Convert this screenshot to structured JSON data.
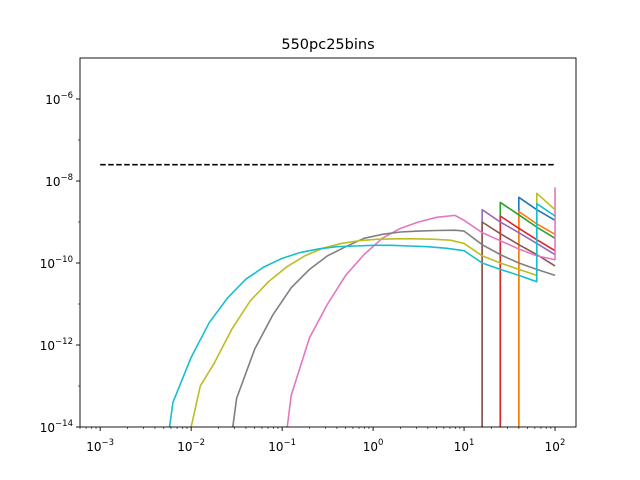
{
  "chart_data": {
    "type": "line",
    "title": "550pc25bins",
    "xlabel": "",
    "ylabel": "",
    "xscale": "log",
    "yscale": "log",
    "xlim": [
      0.0006,
      170
    ],
    "ylim": [
      1e-14,
      1e-05
    ],
    "x_ticks": [
      {
        "value": 0.001,
        "base": "10",
        "exp": "−3"
      },
      {
        "value": 0.01,
        "base": "10",
        "exp": "−2"
      },
      {
        "value": 0.1,
        "base": "10",
        "exp": "−1"
      },
      {
        "value": 1,
        "base": "10",
        "exp": "0"
      },
      {
        "value": 10,
        "base": "10",
        "exp": "1"
      },
      {
        "value": 100,
        "base": "10",
        "exp": "2"
      }
    ],
    "y_ticks": [
      {
        "value": 1e-14,
        "base": "10",
        "exp": "−14"
      },
      {
        "value": 1e-12,
        "base": "10",
        "exp": "−12"
      },
      {
        "value": 1e-10,
        "base": "10",
        "exp": "−10"
      },
      {
        "value": 1e-08,
        "base": "10",
        "exp": "−8"
      },
      {
        "value": 1e-06,
        "base": "10",
        "exp": "−6"
      }
    ],
    "grid": false,
    "legend": "none",
    "reference_line": {
      "x": [
        0.001,
        100
      ],
      "y": [
        2.5e-08,
        2.5e-08
      ],
      "color": "#000000",
      "style": "dashed"
    },
    "series": [
      {
        "color": "#1f77b4",
        "x": [
          40,
          40,
          63,
          100
        ],
        "y": [
          1e-15,
          4e-09,
          2e-09,
          1.1e-09
        ]
      },
      {
        "color": "#ff7f0e",
        "x": [
          40,
          40,
          63,
          100
        ],
        "y": [
          1e-15,
          1.8e-09,
          9e-10,
          5e-10
        ]
      },
      {
        "color": "#2ca02c",
        "x": [
          25,
          25,
          40,
          63,
          100
        ],
        "y": [
          1e-15,
          3e-09,
          1.5e-09,
          7.5e-10,
          4e-10
        ]
      },
      {
        "color": "#d62728",
        "x": [
          25,
          25,
          40,
          63,
          100
        ],
        "y": [
          1e-15,
          1.4e-09,
          7e-10,
          3.7e-10,
          2e-10
        ]
      },
      {
        "color": "#9467bd",
        "x": [
          15.8,
          15.8,
          25,
          40,
          63,
          100
        ],
        "y": [
          1e-15,
          2e-09,
          1e-09,
          5.5e-10,
          3e-10,
          1.6e-10
        ]
      },
      {
        "color": "#8c564b",
        "x": [
          15.8,
          15.8,
          25,
          40,
          63,
          100
        ],
        "y": [
          1e-15,
          1e-09,
          5.2e-10,
          2.8e-10,
          1.6e-10,
          8.5e-11
        ]
      },
      {
        "color": "#e377c2",
        "x": [
          0.1,
          0.126,
          0.2,
          0.316,
          0.5,
          0.794,
          1.26,
          2,
          3.16,
          5,
          7.94,
          10,
          15.8,
          25,
          40,
          63,
          100,
          100
        ],
        "y": [
          1e-15,
          6e-14,
          1.5e-12,
          1e-11,
          5e-11,
          1.6e-10,
          4e-10,
          7e-10,
          1e-09,
          1.3e-09,
          1.45e-09,
          1.1e-09,
          5.5e-10,
          3.5e-10,
          2.2e-10,
          1.5e-10,
          1.2e-10,
          7e-09
        ]
      },
      {
        "color": "#7f7f7f",
        "x": [
          0.025,
          0.0316,
          0.05,
          0.0794,
          0.126,
          0.2,
          0.316,
          0.5,
          0.794,
          1.26,
          2,
          3.16,
          5,
          7.94,
          10,
          15.8,
          25,
          40,
          63,
          100
        ],
        "y": [
          1e-15,
          5e-14,
          8e-13,
          5.5e-12,
          2.5e-11,
          7e-11,
          1.5e-10,
          2.5e-10,
          4e-10,
          5e-10,
          5.7e-10,
          6e-10,
          6.2e-10,
          6.3e-10,
          6e-10,
          2.8e-10,
          1.6e-10,
          1e-10,
          7e-11,
          5e-11
        ]
      },
      {
        "color": "#bcbd22",
        "x": [
          0.01,
          0.0126,
          0.0178,
          0.0282,
          0.0447,
          0.0708,
          0.112,
          0.178,
          0.282,
          0.447,
          0.708,
          1.12,
          1.78,
          2.82,
          4.47,
          7.08,
          10,
          15.8,
          25,
          40,
          63,
          63,
          100
        ],
        "y": [
          1e-14,
          1e-13,
          3.5e-13,
          2.5e-12,
          1.2e-11,
          3.5e-11,
          8e-11,
          1.5e-10,
          2.3e-10,
          3e-10,
          3.5e-10,
          3.8e-10,
          3.9e-10,
          3.9e-10,
          3.8e-10,
          3.6e-10,
          3e-10,
          1.5e-10,
          1e-10,
          7e-11,
          5e-11,
          5e-09,
          2e-09
        ]
      },
      {
        "color": "#17becf",
        "x": [
          0.00501,
          0.00631,
          0.01,
          0.0158,
          0.0251,
          0.0398,
          0.0631,
          0.1,
          0.158,
          0.251,
          0.398,
          0.631,
          1,
          1.58,
          2.51,
          3.98,
          6.31,
          10,
          15.8,
          25,
          40,
          63,
          63,
          100
        ],
        "y": [
          1e-15,
          4e-14,
          5e-13,
          3.5e-12,
          1.4e-11,
          4e-11,
          8e-11,
          1.3e-10,
          1.8e-10,
          2.2e-10,
          2.5e-10,
          2.6e-10,
          2.7e-10,
          2.7e-10,
          2.6e-10,
          2.5e-10,
          2.3e-10,
          2e-10,
          1e-10,
          7e-11,
          5e-11,
          3.5e-11,
          2.8e-09,
          1.4e-09
        ]
      }
    ]
  }
}
